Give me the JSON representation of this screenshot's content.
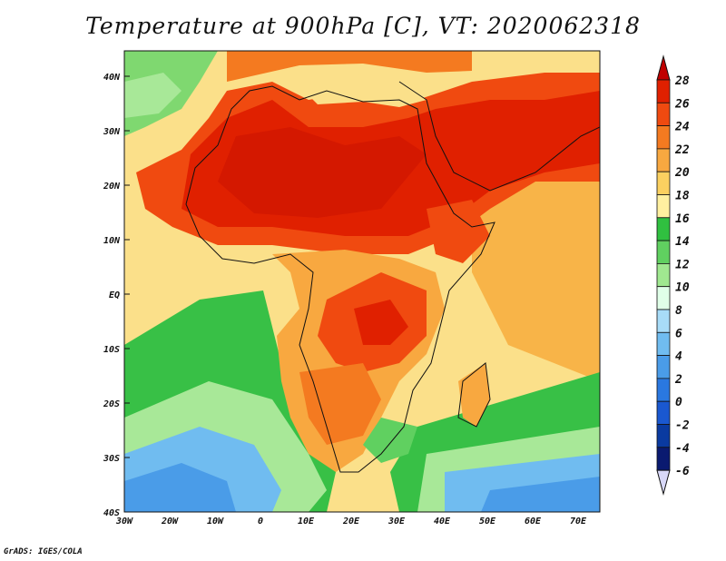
{
  "title": "Temperature at 900hPa [C], VT: 2020062318",
  "credit": "GrADS: IGES/COLA",
  "map": {
    "lon_range": [
      -30,
      75
    ],
    "lat_range": [
      -40,
      45
    ],
    "x_ticks": [
      "30W",
      "20W",
      "10W",
      "0",
      "10E",
      "20E",
      "30E",
      "40E",
      "50E",
      "60E",
      "70E"
    ],
    "y_ticks": [
      "40N",
      "30N",
      "20N",
      "10N",
      "EQ",
      "10S",
      "20S",
      "30S",
      "40S"
    ],
    "region": "Africa and surrounding oceans"
  },
  "colorbar": {
    "labels": [
      "28",
      "26",
      "24",
      "22",
      "20",
      "18",
      "16",
      "14",
      "12",
      "10",
      "8",
      "6",
      "4",
      "2",
      "0",
      "-2",
      "-4",
      "-6"
    ],
    "colors": [
      "#c00000",
      "#e02000",
      "#f04a10",
      "#f47a20",
      "#f8a840",
      "#fbd060",
      "#fff0a0",
      "#30c040",
      "#60d060",
      "#a0e890",
      "#e0ffe8",
      "#a8dcf8",
      "#70bcf0",
      "#4a9ce8",
      "#2a78e0",
      "#1a58d0",
      "#0a3aa0",
      "#0a1a70",
      "#d8d8f8"
    ]
  }
}
